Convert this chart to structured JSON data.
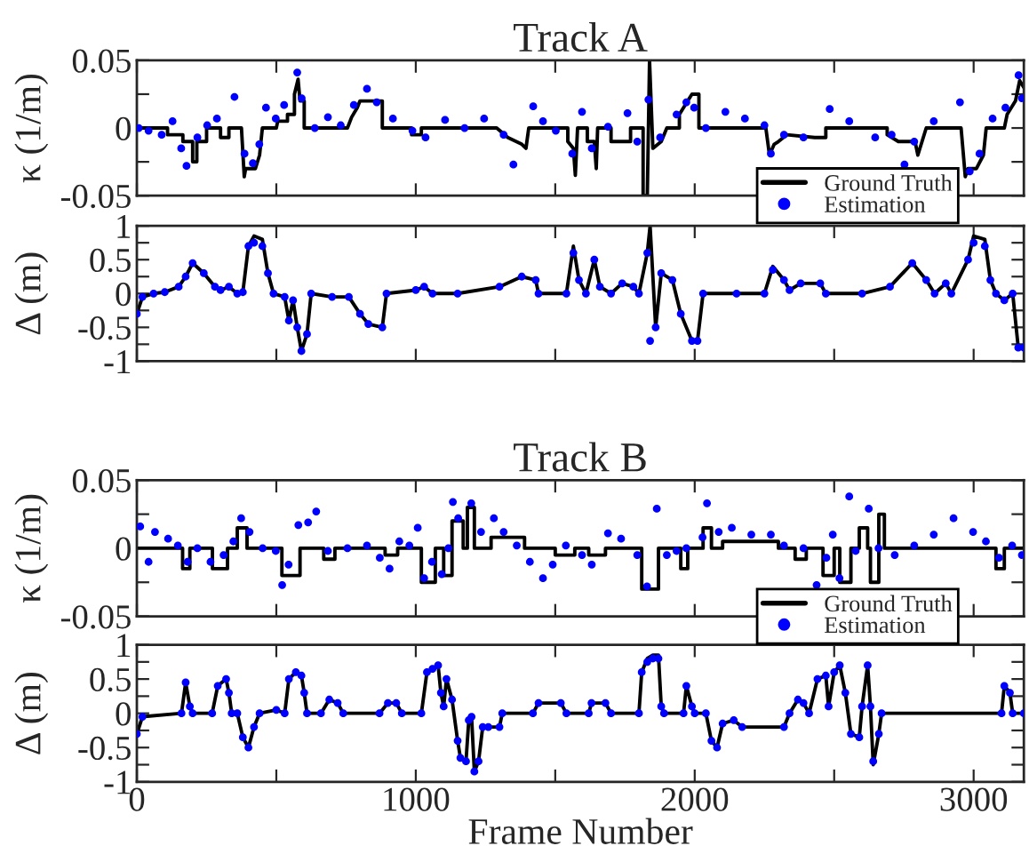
{
  "chart_data": [
    {
      "type": "line",
      "title": "Track A",
      "ylabel": "κ (1/m)",
      "legend": "bottom right",
      "tick_labels": "y",
      "line_style": "solid",
      "xlim": [
        0,
        3180
      ],
      "xticks": [
        0,
        {
          "value": 500,
          "label": null
        },
        1000,
        {
          "value": 1500,
          "label": null
        },
        2000,
        {
          "value": 2500,
          "label": null
        },
        3000
      ],
      "ylim": [
        -0.05,
        0.05
      ],
      "yticks": [
        -0.05,
        {
          "value": -0.025,
          "label": null
        },
        0,
        {
          "value": 0.025,
          "label": null
        },
        0.05
      ],
      "series": [
        {
          "name": "Ground Truth",
          "color": "#000000",
          "x": [
            0,
            110,
            110,
            165,
            165,
            200,
            200,
            215,
            215,
            250,
            250,
            300,
            300,
            330,
            330,
            375,
            385,
            390,
            425,
            440,
            450,
            500,
            505,
            540,
            540,
            565,
            565,
            578,
            585,
            600,
            600,
            755,
            770,
            790,
            800,
            880,
            880,
            985,
            985,
            1020,
            1020,
            1290,
            1330,
            1380,
            1395,
            1405,
            1545,
            1545,
            1565,
            1572,
            1580,
            1615,
            1615,
            1640,
            1647,
            1652,
            1700,
            1700,
            1770,
            1770,
            1815,
            1815,
            1830,
            1838,
            1850,
            1880,
            1900,
            1945,
            1945,
            1975,
            1990,
            2015,
            2015,
            2255,
            2268,
            2285,
            2300,
            2330,
            2430,
            2470,
            2470,
            2690,
            2690,
            2730,
            2790,
            2800,
            2815,
            2830,
            2955,
            2970,
            2980,
            3010,
            3035,
            3045,
            3110,
            3120,
            3150,
            3165,
            3180
          ],
          "values": [
            0,
            0,
            -0.005,
            -0.005,
            -0.01,
            -0.01,
            -0.025,
            -0.025,
            -0.01,
            -0.01,
            0,
            0,
            -0.007,
            -0.007,
            0,
            0,
            -0.036,
            -0.03,
            -0.03,
            -0.02,
            0,
            0,
            0.005,
            0.005,
            0.01,
            0.01,
            0.025,
            0.036,
            0.02,
            0.02,
            0,
            0,
            0.008,
            0.015,
            0.02,
            0.02,
            0,
            0,
            -0.005,
            -0.005,
            0,
            0,
            -0.007,
            -0.012,
            -0.015,
            0,
            0,
            -0.01,
            -0.015,
            -0.035,
            0,
            0,
            -0.01,
            -0.01,
            -0.03,
            0,
            0,
            -0.01,
            -0.01,
            0,
            0,
            -0.05,
            -0.05,
            0.05,
            -0.015,
            -0.01,
            0,
            0,
            0.01,
            0.02,
            0.025,
            0.025,
            0,
            0,
            -0.02,
            -0.012,
            -0.01,
            -0.005,
            -0.007,
            -0.007,
            0,
            0,
            -0.005,
            -0.01,
            -0.01,
            -0.02,
            -0.01,
            0,
            0,
            -0.036,
            -0.03,
            -0.03,
            -0.02,
            0,
            0,
            0.01,
            0.02,
            0.035,
            0.03
          ]
        },
        {
          "name": "Estimation",
          "type": "scatter",
          "marker": "circle",
          "color": "#0000ff",
          "x": [
            7,
            42,
            89,
            128,
            159,
            178,
            217,
            252,
            287,
            350,
            386,
            416,
            439,
            463,
            498,
            528,
            575,
            591,
            638,
            685,
            731,
            778,
            825,
            860,
            918,
            988,
            1035,
            1105,
            1175,
            1245,
            1315,
            1350,
            1421,
            1456,
            1502,
            1561,
            1596,
            1631,
            1689,
            1759,
            1794,
            1834,
            1876,
            1935,
            1970,
            1998,
            2040,
            2110,
            2180,
            2250,
            2273,
            2320,
            2390,
            2484,
            2554,
            2647,
            2706,
            2752,
            2787,
            2857,
            2951,
            2986,
            3021,
            3068,
            3114,
            3161,
            3173
          ],
          "values": [
            0,
            -0.002,
            -0.005,
            0.005,
            -0.015,
            -0.028,
            -0.007,
            0.002,
            0.007,
            0.023,
            -0.019,
            -0.026,
            -0.012,
            0.015,
            0.007,
            0.017,
            0.041,
            0.022,
            0,
            0.008,
            0.002,
            0.017,
            0.029,
            0.019,
            0.007,
            -0.002,
            -0.007,
            0.006,
            0,
            0.007,
            -0.005,
            -0.027,
            0.016,
            0.005,
            -0.002,
            -0.019,
            0.012,
            -0.015,
            0.001,
            0.011,
            -0.01,
            0.021,
            -0.007,
            0.01,
            0.019,
            0.015,
            0,
            0.012,
            0.007,
            0.002,
            -0.019,
            -0.005,
            -0.007,
            0.014,
            0.005,
            -0.007,
            -0.005,
            -0.027,
            -0.01,
            0.005,
            0.019,
            -0.032,
            -0.019,
            0.007,
            0.015,
            0.039,
            0.022
          ]
        }
      ]
    },
    {
      "type": "line",
      "ylabel": "Δ (m)",
      "tick_labels": "y",
      "line_style": "solid",
      "xlim": [
        0,
        3180
      ],
      "xticks": [
        0,
        {
          "value": 500,
          "label": null
        },
        1000,
        {
          "value": 1500,
          "label": null
        },
        2000,
        {
          "value": 2500,
          "label": null
        },
        3000
      ],
      "ylim": [
        -1,
        1
      ],
      "yticks": [
        -1,
        {
          "value": -0.75,
          "label": null
        },
        -0.5,
        {
          "value": -0.25,
          "label": null
        },
        0,
        {
          "value": 0.25,
          "label": null
        },
        0.5,
        {
          "value": 0.75,
          "label": null
        },
        1
      ],
      "series": [
        {
          "color": "#000000",
          "x": [
            0,
            20,
            60,
            100,
            150,
            175,
            200,
            240,
            280,
            300,
            330,
            360,
            380,
            400,
            420,
            450,
            470,
            490,
            530,
            545,
            560,
            575,
            590,
            610,
            625,
            700,
            760,
            800,
            830,
            880,
            895,
            1000,
            1030,
            1060,
            1150,
            1300,
            1380,
            1430,
            1440,
            1540,
            1565,
            1585,
            1610,
            1640,
            1660,
            1700,
            1740,
            1780,
            1800,
            1830,
            1840,
            1860,
            1880,
            1920,
            1950,
            1990,
            2010,
            2030,
            2150,
            2250,
            2280,
            2320,
            2340,
            2380,
            2450,
            2470,
            2600,
            2700,
            2780,
            2830,
            2860,
            2900,
            2920,
            2980,
            3000,
            3040,
            3060,
            3080,
            3110,
            3140,
            3160,
            3180
          ],
          "values": [
            -0.3,
            -0.05,
            0,
            0.02,
            0.1,
            0.25,
            0.45,
            0.3,
            0.1,
            0.05,
            0.1,
            0,
            0.02,
            0.7,
            0.85,
            0.8,
            0.3,
            0,
            -0.05,
            -0.4,
            -0.1,
            -0.5,
            -0.85,
            -0.6,
            0,
            -0.05,
            -0.05,
            -0.3,
            -0.45,
            -0.5,
            0,
            0.05,
            0.1,
            0,
            0,
            0.1,
            0.25,
            0.2,
            0,
            0,
            0.7,
            0.2,
            0,
            0.5,
            0.1,
            0,
            0.15,
            0.1,
            0,
            0.6,
            1,
            -0.5,
            0.3,
            0.2,
            -0.3,
            -0.7,
            -0.7,
            0,
            0,
            0,
            0.4,
            0.2,
            0.05,
            0.15,
            0.15,
            0,
            0,
            0.1,
            0.45,
            0.2,
            0,
            0.15,
            0,
            0.5,
            0.85,
            0.8,
            0.2,
            0,
            -0.1,
            0,
            -0.8,
            -0.8
          ]
        },
        {
          "type": "scatter",
          "marker": "circle",
          "color": "#0000ff",
          "x": [
            0,
            20,
            60,
            100,
            150,
            175,
            200,
            240,
            280,
            300,
            330,
            360,
            380,
            400,
            420,
            450,
            470,
            490,
            530,
            545,
            560,
            575,
            590,
            610,
            625,
            700,
            760,
            800,
            830,
            880,
            895,
            1000,
            1030,
            1060,
            1150,
            1300,
            1380,
            1430,
            1440,
            1540,
            1565,
            1585,
            1610,
            1640,
            1660,
            1700,
            1740,
            1780,
            1800,
            1830,
            1840,
            1860,
            1880,
            1920,
            1950,
            1990,
            2010,
            2030,
            2150,
            2250,
            2280,
            2320,
            2340,
            2380,
            2450,
            2470,
            2600,
            2700,
            2780,
            2830,
            2860,
            2900,
            2920,
            2980,
            3000,
            3040,
            3060,
            3080,
            3110,
            3140,
            3160,
            3180
          ],
          "values": [
            -0.3,
            -0.05,
            0,
            0.02,
            0.1,
            0.25,
            0.45,
            0.3,
            0.1,
            0.05,
            0.1,
            0,
            0.02,
            0.7,
            0.75,
            0.7,
            0.3,
            0,
            -0.05,
            -0.4,
            -0.1,
            -0.5,
            -0.85,
            -0.6,
            0,
            -0.05,
            -0.05,
            -0.3,
            -0.45,
            -0.5,
            0,
            0.05,
            0.1,
            0,
            0,
            0.1,
            0.25,
            0.2,
            0,
            0,
            0.6,
            0.2,
            0,
            0.5,
            0.1,
            0,
            0.15,
            0.1,
            0,
            0.6,
            -0.7,
            -0.5,
            0.3,
            0.2,
            -0.3,
            -0.7,
            -0.7,
            0,
            0,
            0,
            0.35,
            0.2,
            0.05,
            0.15,
            0.15,
            0,
            0,
            0.1,
            0.45,
            0.2,
            0,
            0.15,
            0,
            0.5,
            0.75,
            0.7,
            0.2,
            0,
            -0.1,
            0,
            -0.8,
            -0.8
          ]
        }
      ]
    },
    {
      "type": "line",
      "title": "Track B",
      "ylabel": "κ (1/m)",
      "legend": "bottom right",
      "tick_labels": "y",
      "line_style": "solid",
      "xlim": [
        0,
        3180
      ],
      "xticks": [
        0,
        {
          "value": 500,
          "label": null
        },
        1000,
        {
          "value": 1500,
          "label": null
        },
        2000,
        {
          "value": 2500,
          "label": null
        },
        3000
      ],
      "ylim": [
        -0.05,
        0.05
      ],
      "yticks": [
        -0.05,
        {
          "value": -0.025,
          "label": null
        },
        0,
        {
          "value": 0.025,
          "label": null
        },
        0.05
      ],
      "series": [
        {
          "name": "Ground Truth",
          "color": "#000000",
          "x": [
            0,
            164,
            164,
            190,
            190,
            271,
            271,
            325,
            325,
            360,
            360,
            395,
            395,
            520,
            520,
            585,
            585,
            670,
            670,
            710,
            710,
            890,
            890,
            935,
            935,
            1020,
            1020,
            1070,
            1070,
            1100,
            1100,
            1130,
            1130,
            1170,
            1170,
            1185,
            1185,
            1210,
            1210,
            1270,
            1270,
            1390,
            1390,
            1500,
            1500,
            1570,
            1570,
            1620,
            1620,
            1680,
            1680,
            1810,
            1810,
            1870,
            1870,
            1950,
            1950,
            1975,
            1975,
            2030,
            2030,
            2060,
            2060,
            2100,
            2100,
            2300,
            2300,
            2360,
            2360,
            2400,
            2400,
            2460,
            2460,
            2500,
            2500,
            2520,
            2520,
            2560,
            2560,
            2590,
            2590,
            2620,
            2620,
            2630,
            2630,
            2660,
            2660,
            2680,
            2680,
            3080,
            3080,
            3110,
            3110,
            3180
          ],
          "values": [
            0,
            0,
            -0.015,
            -0.015,
            0,
            0,
            -0.015,
            -0.015,
            0,
            0,
            0.015,
            0.015,
            0,
            0,
            -0.02,
            -0.02,
            0,
            0,
            -0.008,
            -0.008,
            0,
            0,
            -0.005,
            -0.005,
            0,
            0,
            -0.025,
            -0.025,
            0,
            0,
            -0.02,
            -0.02,
            0.02,
            0.02,
            0,
            0,
            0.03,
            0.03,
            0,
            0,
            0.008,
            0.008,
            0,
            0,
            -0.005,
            -0.005,
            0,
            0,
            -0.005,
            -0.005,
            0,
            0,
            -0.03,
            -0.03,
            0,
            0,
            -0.015,
            -0.015,
            0,
            0,
            0.015,
            0.015,
            0,
            0,
            0.005,
            0.005,
            0,
            0,
            -0.008,
            -0.008,
            0,
            0,
            -0.02,
            -0.02,
            0,
            0,
            -0.025,
            -0.025,
            0,
            0,
            0.015,
            0.015,
            0,
            0,
            -0.025,
            -0.025,
            0.025,
            0.025,
            0,
            0,
            -0.015,
            -0.015,
            0,
            0
          ]
        },
        {
          "name": "Estimation",
          "type": "scatter",
          "marker": "circle",
          "color": "#0000ff",
          "x": [
            12,
            42,
            65,
            112,
            147,
            182,
            217,
            264,
            311,
            346,
            374,
            404,
            451,
            498,
            521,
            544,
            579,
            614,
            643,
            685,
            755,
            825,
            871,
            906,
            941,
            977,
            1007,
            1030,
            1058,
            1093,
            1117,
            1133,
            1152,
            1199,
            1234,
            1280,
            1315,
            1362,
            1409,
            1456,
            1491,
            1538,
            1596,
            1631,
            1689,
            1736,
            1794,
            1829,
            1864,
            1900,
            1935,
            1970,
            2028,
            2044,
            2086,
            2133,
            2203,
            2273,
            2320,
            2390,
            2437,
            2472,
            2495,
            2519,
            2554,
            2577,
            2624,
            2659,
            2717,
            2787,
            2857,
            2928,
            2998,
            3044,
            3091,
            3138,
            3173
          ],
          "values": [
            0.016,
            -0.01,
            0.012,
            0.007,
            0.002,
            -0.01,
            0,
            -0.01,
            -0.005,
            0.005,
            0.022,
            0.012,
            0,
            -0.002,
            -0.027,
            -0.012,
            0.017,
            0.019,
            0.027,
            -0.002,
            0,
            0.002,
            -0.007,
            -0.015,
            0.005,
            0.002,
            0.015,
            -0.022,
            -0.01,
            -0.019,
            0,
            0.034,
            0.022,
            0.033,
            0.012,
            0.022,
            0.012,
            0.002,
            -0.01,
            -0.022,
            -0.012,
            0.002,
            -0.005,
            -0.012,
            0.011,
            0.007,
            -0.005,
            -0.028,
            0.029,
            -0.005,
            -0.002,
            0,
            0.008,
            0.033,
            0.012,
            0.015,
            0.01,
            0.01,
            0.002,
            0,
            -0.027,
            -0.007,
            0.01,
            -0.022,
            0.038,
            -0.002,
            0.029,
            0,
            -0.005,
            0.002,
            0.01,
            0.022,
            0.012,
            0.005,
            -0.007,
            0.002,
            -0.005
          ]
        }
      ]
    },
    {
      "type": "line",
      "ylabel": "Δ (m)",
      "xlabel": "Frame Number",
      "line_style": "solid",
      "xlim": [
        0,
        3180
      ],
      "xticks": [
        0,
        {
          "value": 500,
          "label": null
        },
        1000,
        {
          "value": 1500,
          "label": null
        },
        2000,
        {
          "value": 2500,
          "label": null
        },
        3000
      ],
      "ylim": [
        -1,
        1
      ],
      "yticks": [
        -1,
        {
          "value": -0.75,
          "label": null
        },
        -0.5,
        {
          "value": -0.25,
          "label": null
        },
        0,
        {
          "value": 0.25,
          "label": null
        },
        0.5,
        {
          "value": 0.75,
          "label": null
        },
        1
      ],
      "series": [
        {
          "color": "#000000",
          "x": [
            0,
            20,
            160,
            175,
            190,
            200,
            270,
            290,
            320,
            330,
            340,
            360,
            380,
            400,
            420,
            440,
            500,
            530,
            545,
            570,
            590,
            600,
            610,
            660,
            690,
            720,
            740,
            870,
            900,
            930,
            950,
            1020,
            1040,
            1060,
            1080,
            1090,
            1100,
            1110,
            1130,
            1150,
            1160,
            1180,
            1190,
            1200,
            1210,
            1225,
            1240,
            1260,
            1300,
            1310,
            1420,
            1440,
            1520,
            1540,
            1620,
            1630,
            1680,
            1700,
            1800,
            1810,
            1830,
            1850,
            1870,
            1880,
            1890,
            1960,
            1970,
            1990,
            2000,
            2040,
            2060,
            2080,
            2100,
            2140,
            2170,
            2320,
            2340,
            2370,
            2390,
            2410,
            2440,
            2470,
            2480,
            2500,
            2520,
            2540,
            2560,
            2590,
            2600,
            2620,
            2630,
            2640,
            2660,
            2670,
            3100,
            3110,
            3130,
            3140,
            3180
          ],
          "values": [
            -0.3,
            -0.05,
            0,
            0.45,
            0.1,
            0,
            0,
            0.4,
            0.5,
            0.3,
            0,
            0,
            -0.35,
            -0.5,
            -0.2,
            0,
            0.05,
            0,
            0.5,
            0.6,
            0.55,
            0.3,
            0,
            0,
            0.2,
            0.15,
            0,
            0,
            0.15,
            0.15,
            0,
            0,
            0.6,
            0.65,
            0.7,
            0.3,
            0.1,
            0.5,
            0.2,
            -0.4,
            -0.65,
            -0.7,
            -0.1,
            -0.05,
            -0.85,
            -0.7,
            -0.2,
            -0.2,
            -0.2,
            0,
            0,
            0.15,
            0.15,
            0,
            0,
            0.15,
            0.15,
            0,
            0,
            0.6,
            0.8,
            0.85,
            0.85,
            0.1,
            0,
            0,
            0.4,
            0.1,
            0,
            0,
            -0.4,
            -0.5,
            -0.15,
            -0.1,
            -0.2,
            -0.2,
            0,
            0.2,
            0.15,
            0,
            0.5,
            0.55,
            0.1,
            0.6,
            0.7,
            0.3,
            -0.3,
            -0.35,
            0.1,
            0.7,
            0.1,
            -0.75,
            -0.3,
            0,
            0,
            0.4,
            0.3,
            0,
            0
          ]
        },
        {
          "type": "scatter",
          "marker": "circle",
          "color": "#0000ff",
          "x": [
            0,
            20,
            160,
            175,
            190,
            200,
            270,
            290,
            320,
            330,
            340,
            360,
            380,
            400,
            420,
            440,
            500,
            530,
            545,
            570,
            590,
            600,
            610,
            660,
            690,
            720,
            740,
            870,
            900,
            930,
            950,
            1020,
            1040,
            1060,
            1080,
            1090,
            1100,
            1110,
            1130,
            1150,
            1160,
            1180,
            1190,
            1200,
            1210,
            1225,
            1240,
            1260,
            1300,
            1310,
            1420,
            1440,
            1520,
            1540,
            1620,
            1630,
            1680,
            1700,
            1800,
            1810,
            1830,
            1850,
            1870,
            1880,
            1890,
            1960,
            1970,
            1990,
            2000,
            2040,
            2060,
            2080,
            2100,
            2140,
            2170,
            2320,
            2340,
            2370,
            2390,
            2410,
            2440,
            2470,
            2480,
            2500,
            2520,
            2540,
            2560,
            2590,
            2600,
            2620,
            2630,
            2640,
            2660,
            2670,
            3100,
            3110,
            3130,
            3140,
            3180
          ],
          "values": [
            -0.3,
            -0.05,
            0,
            0.45,
            0.1,
            0,
            0,
            0.4,
            0.5,
            0.3,
            0,
            0,
            -0.35,
            -0.5,
            -0.2,
            0,
            0.05,
            0,
            0.5,
            0.6,
            0.55,
            0.3,
            0,
            0,
            0.2,
            0.15,
            0,
            0,
            0.15,
            0.15,
            0,
            0,
            0.6,
            0.65,
            0.7,
            0.3,
            0.1,
            0.5,
            0.2,
            -0.4,
            -0.65,
            -0.7,
            -0.1,
            -0.05,
            -0.85,
            -0.7,
            -0.2,
            -0.2,
            -0.2,
            0,
            0,
            0.15,
            0.15,
            0,
            0,
            0.15,
            0.15,
            0,
            0,
            0.6,
            0.75,
            0.8,
            0.8,
            0.1,
            0,
            0,
            0.4,
            0.1,
            0,
            0,
            -0.4,
            -0.5,
            -0.15,
            -0.1,
            -0.2,
            -0.2,
            0,
            0.2,
            0.15,
            0,
            0.5,
            0.55,
            0.1,
            0.6,
            0.7,
            0.3,
            -0.3,
            -0.35,
            0.1,
            0.7,
            0.1,
            -0.7,
            -0.3,
            0,
            0,
            0.4,
            0.3,
            0,
            0
          ]
        }
      ]
    }
  ]
}
